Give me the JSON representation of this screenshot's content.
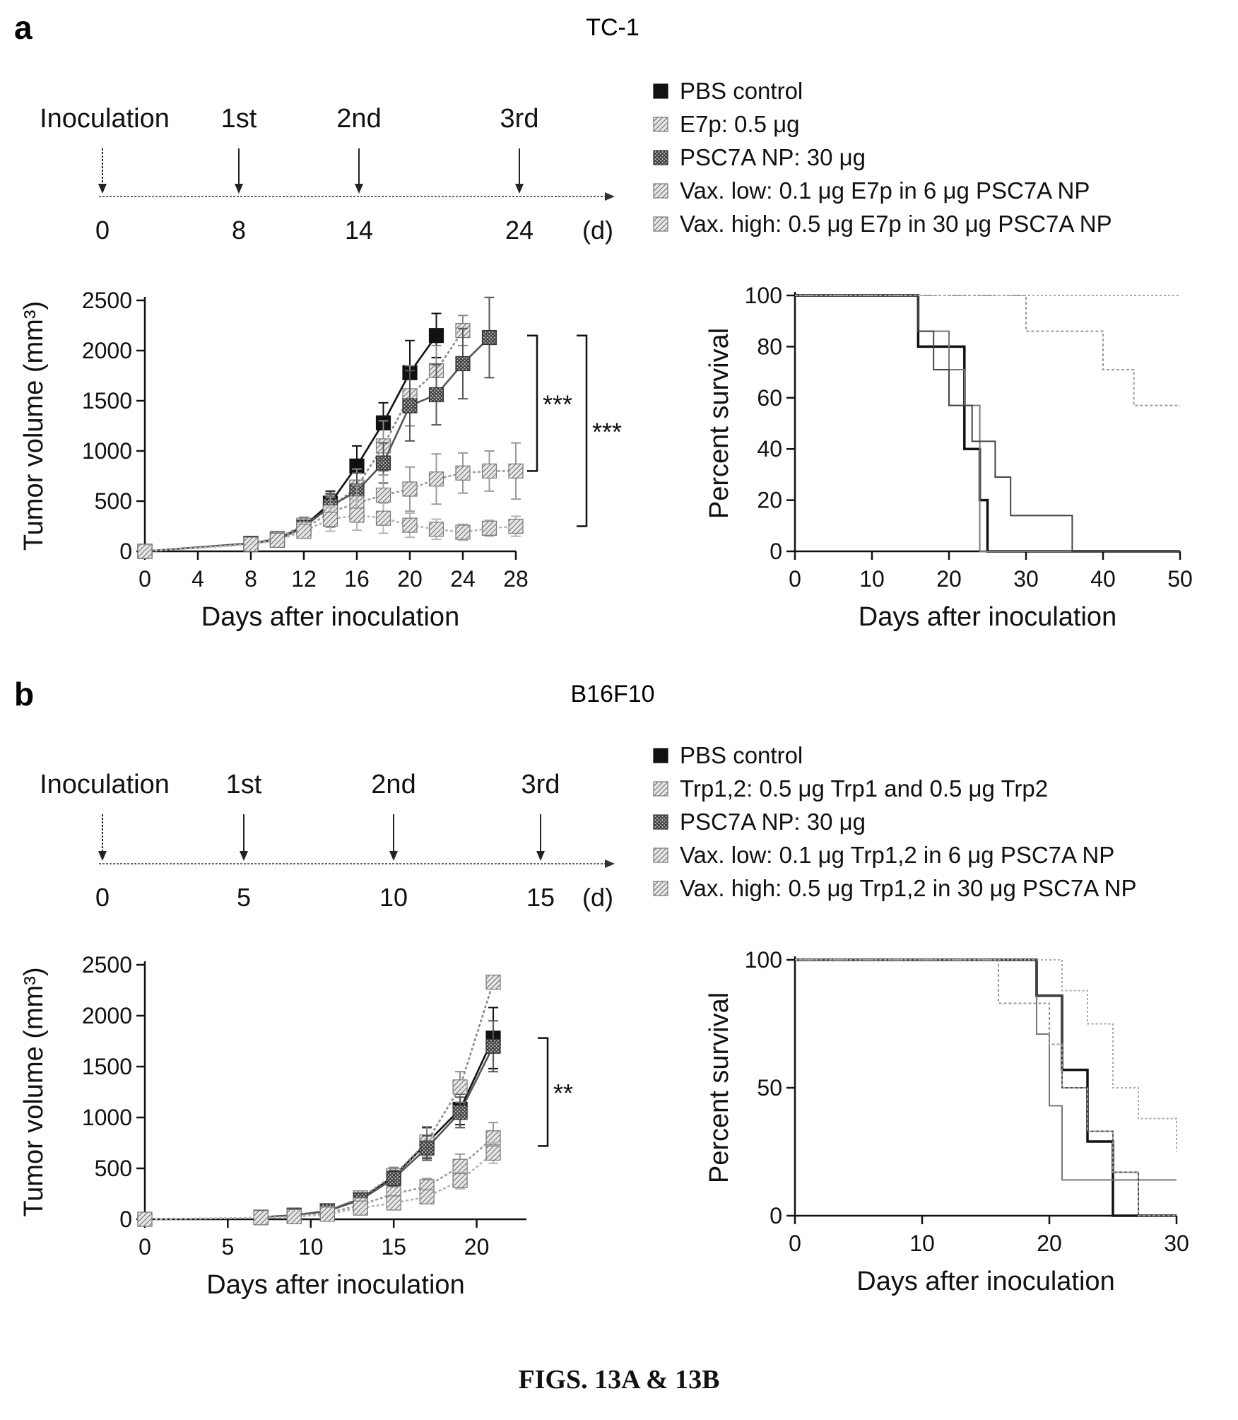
{
  "caption": "FIGS. 13A & 13B",
  "panels": [
    {
      "label": "a",
      "title": "TC-1",
      "timeline": {
        "events": [
          "Inoculation",
          "1st",
          "2nd",
          "3rd"
        ],
        "days": [
          "0",
          "8",
          "14",
          "24"
        ],
        "unit": "(d)"
      },
      "legend": [
        {
          "marker": "solid",
          "label": "PBS control"
        },
        {
          "marker": "hatch",
          "label": "E7p: 0.5 μg"
        },
        {
          "marker": "cross",
          "label": "PSC7A NP: 30 μg"
        },
        {
          "marker": "hatch",
          "label": "Vax. low: 0.1 μg E7p in 6 μg PSC7A NP"
        },
        {
          "marker": "hatch",
          "label": "Vax. high: 0.5 μg E7p in 30 μg PSC7A NP"
        }
      ]
    },
    {
      "label": "b",
      "title": "B16F10",
      "timeline": {
        "events": [
          "Inoculation",
          "1st",
          "2nd",
          "3rd"
        ],
        "days": [
          "0",
          "5",
          "10",
          "15"
        ],
        "unit": "(d)"
      },
      "legend": [
        {
          "marker": "solid",
          "label": "PBS control"
        },
        {
          "marker": "hatch",
          "label": "Trp1,2: 0.5 μg Trp1 and 0.5 μg Trp2"
        },
        {
          "marker": "cross",
          "label": "PSC7A NP: 30 μg"
        },
        {
          "marker": "hatch",
          "label": "Vax. low: 0.1 μg Trp1,2 in 6 μg PSC7A NP"
        },
        {
          "marker": "hatch",
          "label": "Vax. high: 0.5 μg Trp1,2 in 30 μg PSC7A NP"
        }
      ]
    }
  ],
  "chart_data": [
    {
      "type": "line",
      "panel": "a",
      "xlabel": "Days after inoculation",
      "ylabel": "Tumor volume (mm³)",
      "xlim": [
        0,
        28
      ],
      "ylim": [
        0,
        2500
      ],
      "xticks": [
        0,
        4,
        8,
        12,
        16,
        20,
        24,
        28
      ],
      "yticks": [
        0,
        500,
        1000,
        1500,
        2000,
        2500
      ],
      "series": [
        {
          "name": "PBS control",
          "color": "#111111",
          "dash": "",
          "marker": "square",
          "x": [
            0,
            8,
            10,
            12,
            14,
            16,
            18,
            20,
            22
          ],
          "y": [
            0,
            80,
            120,
            250,
            480,
            850,
            1280,
            1780,
            2150
          ],
          "err": [
            0,
            20,
            30,
            60,
            120,
            200,
            200,
            320,
            220
          ]
        },
        {
          "name": "E7p: 0.5 μg",
          "color": "#8a8a8a",
          "dash": "4,3",
          "marker": "hatch",
          "x": [
            0,
            8,
            10,
            12,
            14,
            16,
            18,
            20,
            22,
            24
          ],
          "y": [
            0,
            80,
            130,
            260,
            430,
            640,
            1050,
            1550,
            1800,
            2200
          ],
          "err": [
            0,
            20,
            30,
            80,
            150,
            180,
            250,
            300,
            250,
            150
          ]
        },
        {
          "name": "PSC7A NP: 30 μg",
          "color": "#555555",
          "dash": "",
          "marker": "cross",
          "x": [
            0,
            8,
            10,
            12,
            14,
            16,
            18,
            20,
            22,
            24,
            26
          ],
          "y": [
            0,
            80,
            110,
            240,
            450,
            600,
            880,
            1450,
            1560,
            1870,
            2130
          ],
          "err": [
            0,
            20,
            30,
            60,
            120,
            180,
            200,
            350,
            300,
            350,
            400
          ]
        },
        {
          "name": "Vax. low: 0.1 μg E7p in 6 μg PSC7A NP",
          "color": "#9a9a9a",
          "dash": "4,3",
          "marker": "hatch",
          "x": [
            0,
            8,
            10,
            12,
            14,
            16,
            18,
            20,
            22,
            24,
            26,
            28
          ],
          "y": [
            0,
            70,
            120,
            220,
            390,
            480,
            560,
            620,
            720,
            780,
            800,
            800
          ],
          "err": [
            0,
            20,
            30,
            60,
            150,
            180,
            200,
            220,
            250,
            200,
            200,
            280
          ]
        },
        {
          "name": "Vax. high: 0.5 μg E7p in 30 μg PSC7A NP",
          "color": "#b5b5b5",
          "dash": "4,3",
          "marker": "hatch",
          "x": [
            0,
            8,
            10,
            12,
            14,
            16,
            18,
            20,
            22,
            24,
            26,
            28
          ],
          "y": [
            0,
            70,
            110,
            200,
            320,
            360,
            330,
            260,
            220,
            190,
            230,
            250
          ],
          "err": [
            0,
            20,
            30,
            60,
            120,
            150,
            150,
            120,
            100,
            80,
            80,
            100
          ]
        }
      ],
      "significance": [
        {
          "text": "***",
          "y_top": 2150,
          "y_bottom": 800
        },
        {
          "text": "***",
          "y_top": 2150,
          "y_bottom": 250
        }
      ]
    },
    {
      "type": "line",
      "panel": "a",
      "step": true,
      "xlabel": "Days after inoculation",
      "ylabel": "Percent survival",
      "xlim": [
        0,
        50
      ],
      "ylim": [
        0,
        100
      ],
      "xticks": [
        0,
        10,
        20,
        30,
        40,
        50
      ],
      "yticks": [
        0,
        20,
        40,
        60,
        80,
        100
      ],
      "series": [
        {
          "name": "PBS control",
          "color": "#111111",
          "width": 3.5,
          "dash": "",
          "x": [
            0,
            16,
            22,
            24,
            25,
            50
          ],
          "y": [
            100,
            80,
            40,
            20,
            0,
            0
          ]
        },
        {
          "name": "E7p: 0.5 μg",
          "color": "#777777",
          "width": 2,
          "dash": "",
          "x": [
            0,
            16,
            20,
            22,
            24,
            50
          ],
          "y": [
            100,
            86,
            71,
            57,
            0,
            0
          ]
        },
        {
          "name": "PSC7A NP: 30 μg",
          "color": "#444444",
          "width": 2,
          "dash": "",
          "x": [
            0,
            16,
            18,
            20,
            23,
            26,
            28,
            36,
            50
          ],
          "y": [
            100,
            86,
            71,
            57,
            43,
            29,
            14,
            0,
            0
          ]
        },
        {
          "name": "Vax. low: 0.1 μg E7p in 6 μg PSC7A NP",
          "color": "#999999",
          "width": 2,
          "dash": "4,3",
          "x": [
            0,
            30,
            40,
            44,
            50
          ],
          "y": [
            100,
            86,
            71,
            57,
            57
          ]
        },
        {
          "name": "Vax. high: 0.5 μg E7p in 30 μg PSC7A NP",
          "color": "#aaaaaa",
          "width": 2,
          "dash": "3,3",
          "x": [
            0,
            50
          ],
          "y": [
            100,
            100
          ]
        }
      ]
    },
    {
      "type": "line",
      "panel": "b",
      "xlabel": "Days after inoculation",
      "ylabel": "Tumor volume (mm³)",
      "xlim": [
        0,
        23
      ],
      "ylim": [
        0,
        2500
      ],
      "xticks": [
        0,
        5,
        10,
        15,
        20
      ],
      "yticks": [
        0,
        500,
        1000,
        1500,
        2000,
        2500
      ],
      "series": [
        {
          "name": "PBS control",
          "color": "#111111",
          "dash": "",
          "marker": "square",
          "x": [
            7,
            9,
            11,
            13,
            15,
            17,
            19,
            21
          ],
          "y": [
            20,
            40,
            80,
            200,
            420,
            750,
            1080,
            1780
          ],
          "err": [
            5,
            10,
            20,
            40,
            80,
            150,
            150,
            300
          ]
        },
        {
          "name": "Trp1,2: 0.5 μg Trp1 and 0.5 μg Trp2",
          "color": "#8a8a8a",
          "dash": "4,3",
          "marker": "hatch",
          "x": [
            7,
            9,
            11,
            13,
            15,
            17,
            19,
            21
          ],
          "y": [
            20,
            40,
            85,
            210,
            430,
            760,
            1300,
            2330
          ],
          "err": [
            5,
            10,
            20,
            40,
            80,
            150,
            150,
            50
          ]
        },
        {
          "name": "PSC7A NP: 30 μg",
          "color": "#555555",
          "dash": "",
          "marker": "cross",
          "x": [
            7,
            9,
            11,
            13,
            15,
            17,
            19,
            21
          ],
          "y": [
            20,
            40,
            80,
            190,
            400,
            700,
            1050,
            1700
          ],
          "err": [
            5,
            10,
            20,
            40,
            80,
            120,
            150,
            250
          ]
        },
        {
          "name": "Vax. low: 0.1 μg Trp1,2 in 6 μg PSC7A NP",
          "color": "#9a9a9a",
          "dash": "4,3",
          "marker": "hatch",
          "x": [
            0,
            7,
            9,
            11,
            13,
            15,
            17,
            19,
            21
          ],
          "y": [
            0,
            15,
            30,
            60,
            140,
            250,
            320,
            520,
            800
          ],
          "err": [
            0,
            5,
            10,
            20,
            30,
            60,
            80,
            120,
            150
          ]
        },
        {
          "name": "Vax. high: 0.5 μg Trp1,2 in 30 μg PSC7A NP",
          "color": "#b5b5b5",
          "dash": "4,3",
          "marker": "hatch",
          "x": [
            0,
            7,
            9,
            11,
            13,
            15,
            17,
            19,
            21
          ],
          "y": [
            0,
            15,
            25,
            50,
            110,
            160,
            220,
            380,
            650
          ],
          "err": [
            0,
            5,
            10,
            20,
            30,
            50,
            60,
            80,
            100
          ]
        }
      ],
      "significance": [
        {
          "text": "**",
          "y_top": 1780,
          "y_bottom": 720
        }
      ]
    },
    {
      "type": "line",
      "panel": "b",
      "step": true,
      "xlabel": "Days after inoculation",
      "ylabel": "Percent survival",
      "xlim": [
        0,
        30
      ],
      "ylim": [
        0,
        100
      ],
      "xticks": [
        0,
        10,
        20,
        30
      ],
      "yticks": [
        0,
        50,
        100
      ],
      "series": [
        {
          "name": "PBS control",
          "color": "#111111",
          "width": 3.5,
          "dash": "",
          "x": [
            0,
            19,
            21,
            23,
            25,
            30
          ],
          "y": [
            100,
            86,
            57,
            29,
            0,
            0
          ]
        },
        {
          "name": "Trp1,2: 0.5 μg Trp1 and 0.5 μg Trp2",
          "color": "#777777",
          "width": 2,
          "dash": "",
          "x": [
            0,
            19,
            20,
            21,
            30
          ],
          "y": [
            100,
            71,
            43,
            14,
            14
          ]
        },
        {
          "name": "PSC7A NP: 30 μg",
          "color": "#444444",
          "width": 2,
          "dash": "",
          "x": [
            0,
            19,
            21,
            23,
            25,
            27,
            30
          ],
          "y": [
            100,
            86,
            50,
            33,
            17,
            0,
            0
          ]
        },
        {
          "name": "Vax. low: 0.1 μg Trp1,2 in 6 μg PSC7A NP",
          "color": "#999999",
          "width": 2,
          "dash": "4,3",
          "x": [
            0,
            16,
            20,
            21,
            23,
            25,
            27,
            30
          ],
          "y": [
            100,
            83,
            67,
            50,
            33,
            17,
            0,
            0
          ]
        },
        {
          "name": "Vax. high: 0.5 μg Trp1,2 in 30 μg PSC7A NP",
          "color": "#aaaaaa",
          "width": 2,
          "dash": "3,3",
          "x": [
            0,
            21,
            23,
            25,
            27,
            30
          ],
          "y": [
            100,
            88,
            75,
            50,
            38,
            25
          ]
        }
      ]
    }
  ]
}
